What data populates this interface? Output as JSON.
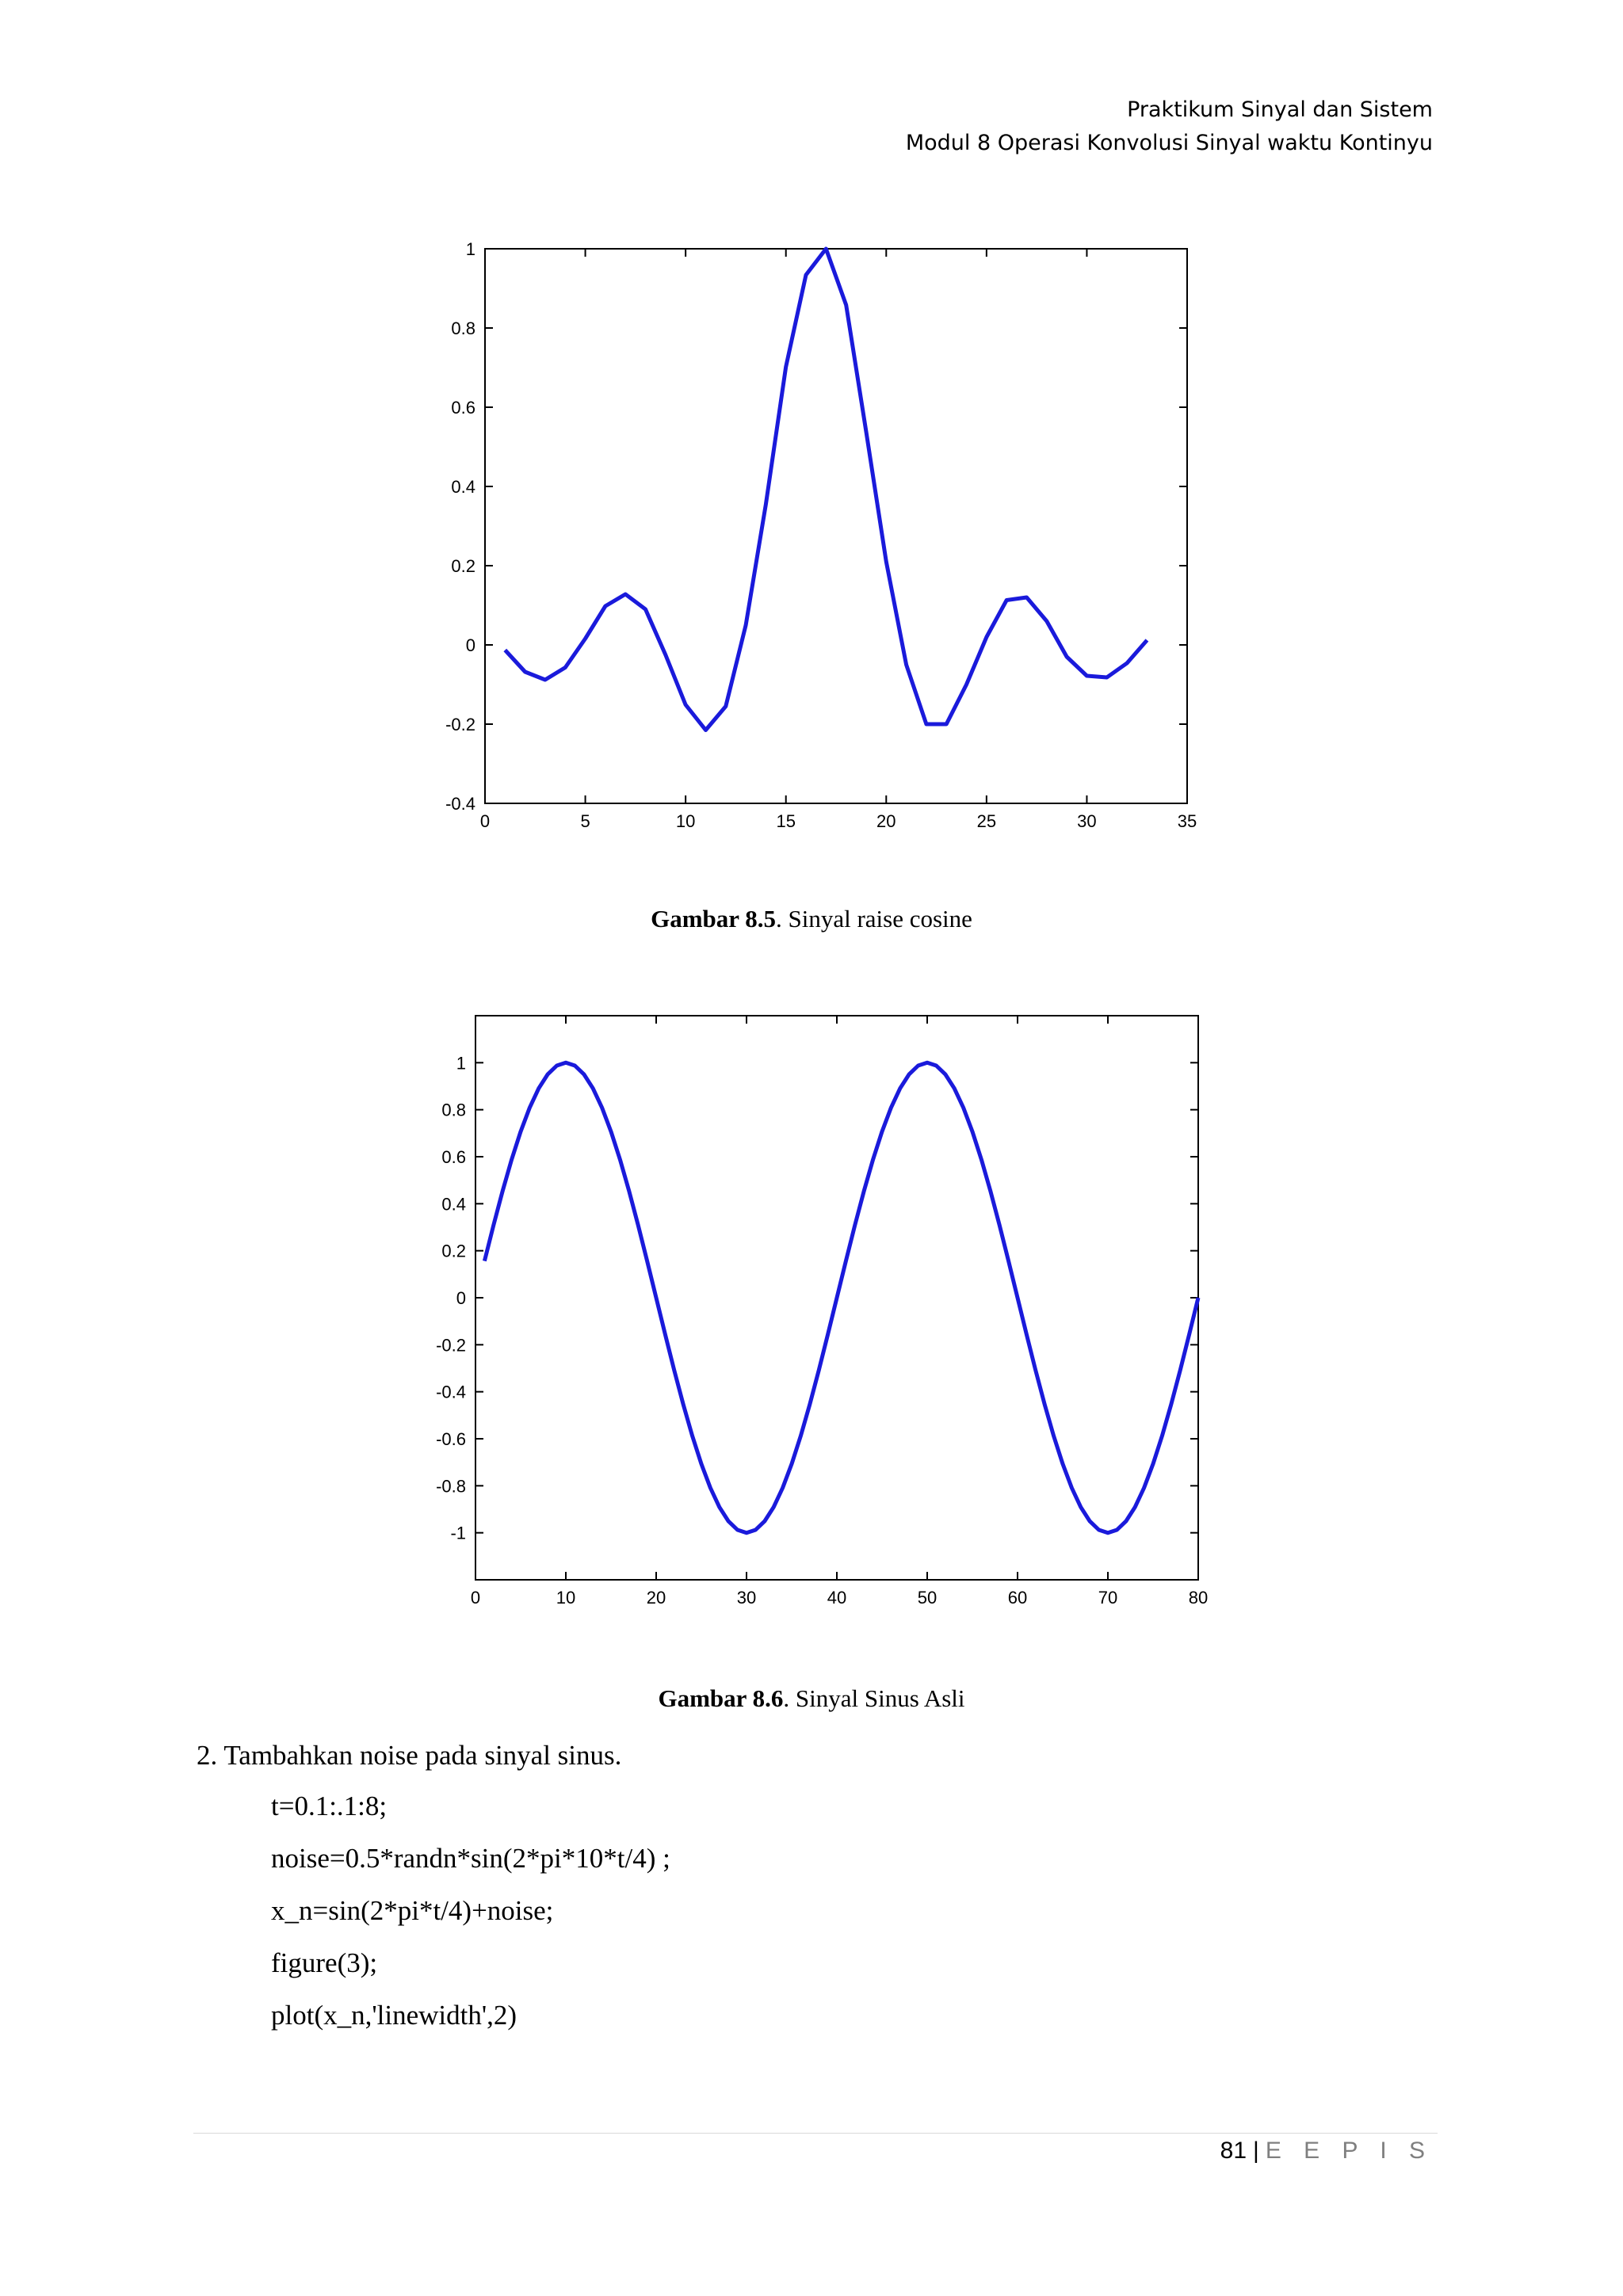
{
  "header": {
    "line1": "Praktikum Sinyal dan Sistem",
    "line2": "Modul 8 Operasi Konvolusi Sinyal waktu Kontinyu"
  },
  "figures": [
    {
      "caption_bold": "Gambar 8.5",
      "caption_rest": ". Sinyal raise cosine"
    },
    {
      "caption_bold": "Gambar 8.6",
      "caption_rest": ". Sinyal Sinus Asli"
    }
  ],
  "chart_data": [
    {
      "type": "line",
      "title": "",
      "xlabel": "",
      "ylabel": "",
      "xlim": [
        0,
        35
      ],
      "ylim": [
        -0.4,
        1
      ],
      "xticks": [
        0,
        5,
        10,
        15,
        20,
        25,
        30,
        35
      ],
      "yticks": [
        -0.4,
        -0.2,
        0,
        0.2,
        0.4,
        0.6,
        0.8,
        1
      ],
      "ytick_labels": [
        "-0.4",
        "-0.2",
        "0",
        "0.2",
        "0.4",
        "0.6",
        "0.8",
        "1"
      ],
      "grid": false,
      "color": "#1a1adb",
      "series": [
        {
          "x": [
            1,
            2,
            3,
            4,
            5,
            6,
            7,
            8,
            9,
            10,
            11,
            12,
            13,
            14,
            15,
            16,
            17,
            18,
            19,
            20,
            21,
            22,
            23,
            24,
            25,
            26,
            27,
            28,
            29,
            30,
            31,
            32,
            33
          ],
          "values": [
            -0.013,
            -0.068,
            -0.088,
            -0.057,
            0.016,
            0.098,
            0.128,
            0.09,
            -0.025,
            -0.151,
            -0.215,
            -0.155,
            0.05,
            0.355,
            0.702,
            0.934,
            1.0,
            0.858,
            0.538,
            0.21,
            -0.05,
            -0.2,
            -0.2,
            -0.1,
            0.02,
            0.113,
            0.12,
            0.06,
            -0.03,
            -0.078,
            -0.082,
            -0.046,
            0.012
          ]
        }
      ]
    },
    {
      "type": "line",
      "title": "",
      "xlabel": "",
      "ylabel": "",
      "xlim": [
        0,
        80
      ],
      "ylim": [
        -1.2,
        1.2
      ],
      "xticks": [
        0,
        10,
        20,
        30,
        40,
        50,
        60,
        70,
        80
      ],
      "yticks": [
        -1,
        -0.8,
        -0.6,
        -0.4,
        -0.2,
        0,
        0.2,
        0.4,
        0.6,
        0.8,
        1
      ],
      "ytick_labels": [
        "-1",
        "-0.8",
        "-0.6",
        "-0.4",
        "-0.2",
        "0",
        "0.2",
        "0.4",
        "0.6",
        "0.8",
        "1"
      ],
      "grid": false,
      "color": "#1a1adb",
      "series": [
        {
          "function": "sin(2*pi*t/4)",
          "t_start": 0.1,
          "t_step": 0.1,
          "t_end": 8
        }
      ]
    }
  ],
  "steps": [
    {
      "text": "2. Tambahkan noise pada sinyal sinus.",
      "code": [
        "t=0.1:.1:8;",
        "noise=0.5*randn*sin(2*pi*10*t/4) ;",
        "x_n=sin(2*pi*t/4)+noise;",
        "figure(3);",
        "plot(x_n,'linewidth',2)"
      ]
    }
  ],
  "footer": {
    "page": "81",
    "separator": "|",
    "org": "E E P I S"
  }
}
